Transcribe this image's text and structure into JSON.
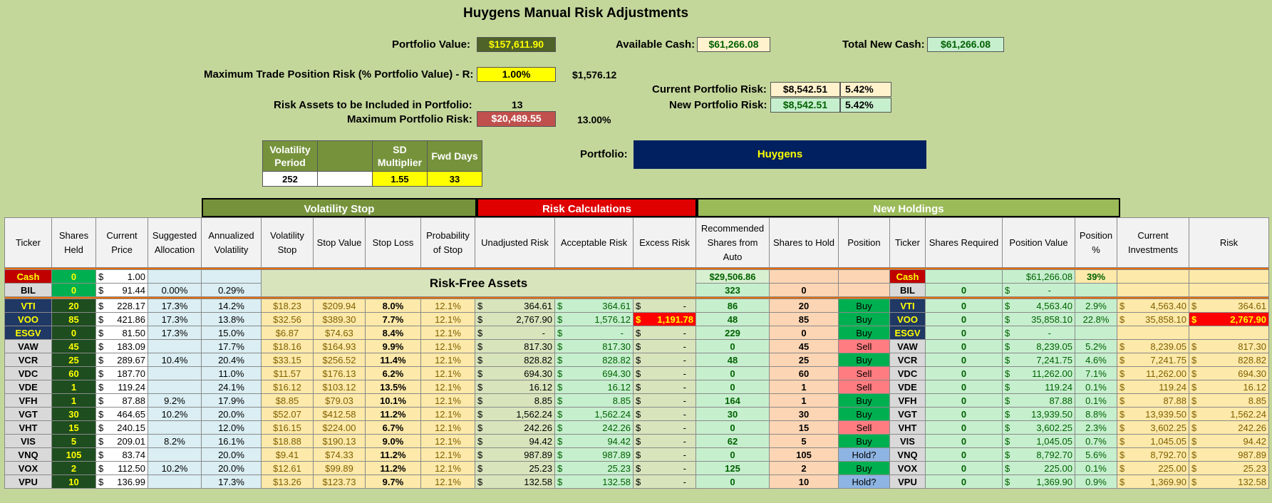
{
  "title": "Huygens Manual Risk Adjustments",
  "portfolio_value": {
    "label": "Portfolio Value:",
    "value": "$157,611.90"
  },
  "available_cash": {
    "label": "Available Cash:",
    "value": "$61,266.08"
  },
  "total_new_cash": {
    "label": "Total New Cash:",
    "value": "$61,266.08"
  },
  "max_trade_risk": {
    "label": "Maximum Trade Position Risk (% Portfolio Value) - R:",
    "value": "1.00%",
    "amount": "$1,576.12"
  },
  "current_portfolio_risk": {
    "label": "Current Portfolio Risk:",
    "value": "$8,542.51",
    "pct": "5.42%"
  },
  "new_portfolio_risk": {
    "label": "New Portfolio Risk:",
    "value": "$8,542.51",
    "pct": "5.42%"
  },
  "risk_assets": {
    "label": "Risk Assets to be Included in Portfolio:",
    "value": "13"
  },
  "max_portfolio_risk": {
    "label": "Maximum Portfolio Risk:",
    "value": "$20,489.55",
    "pct": "13.00%"
  },
  "params": {
    "h1": "Volatility Period",
    "h2": "",
    "h3": "SD Multiplier",
    "h4": "Fwd Days",
    "v1": "252",
    "v2": "",
    "v3": "1.55",
    "v4": "33"
  },
  "portfolio": {
    "label": "Portfolio:",
    "value": "Huygens"
  },
  "sections": {
    "vol_stop": "Volatility Stop",
    "risk_calc": "Risk Calculations",
    "new_holdings": "New Holdings"
  },
  "headers": [
    "Ticker",
    "Shares Held",
    "Current Price",
    "Suggested Allocation",
    "Annualized Volatility",
    "Volatility Stop",
    "Stop Value",
    "Stop Loss",
    "Probability of Stop",
    "Unadjusted Risk",
    "Acceptable Risk",
    "Excess Risk",
    "Recommended Shares from Auto",
    "Shares to Hold",
    "Position",
    "Ticker",
    "Shares Required",
    "Position Value",
    "Position %",
    "Current Investments",
    "Risk"
  ],
  "cash_row": {
    "ticker": "Cash",
    "shares": "0",
    "price": "1.00",
    "rec": "$29,506.86",
    "ticker2": "Cash",
    "posval": "$61,266.08",
    "pospct": "39%"
  },
  "bil_row": {
    "ticker": "BIL",
    "shares": "0",
    "price": "91.44",
    "alloc": "0.00%",
    "vol": "0.29%",
    "rec": "323",
    "hold": "0",
    "ticker2": "BIL",
    "req": "0",
    "posval": "-"
  },
  "risk_free_label": "Risk-Free Assets",
  "rows": [
    {
      "ticker": "VTI",
      "shares": "20",
      "price": "228.17",
      "alloc": "17.3%",
      "vol": "14.2%",
      "vstop": "$18.23",
      "sval": "$209.94",
      "sloss": "8.0%",
      "prob": "12.1%",
      "unadj": "364.61",
      "accept": "364.61",
      "excess": "-",
      "rec": "86",
      "hold": "20",
      "pos": "Buy",
      "req": "0",
      "posval": "4,563.40",
      "pospct": "2.9%",
      "curinv": "4,563.40",
      "risk": "364.61"
    },
    {
      "ticker": "VOO",
      "shares": "85",
      "price": "421.86",
      "alloc": "17.3%",
      "vol": "13.8%",
      "vstop": "$32.56",
      "sval": "$389.30",
      "sloss": "7.7%",
      "prob": "12.1%",
      "unadj": "2,767.90",
      "accept": "1,576.12",
      "excess": "1,191.78",
      "rec": "48",
      "hold": "85",
      "pos": "Buy",
      "req": "0",
      "posval": "35,858.10",
      "pospct": "22.8%",
      "curinv": "35,858.10",
      "risk": "2,767.90"
    },
    {
      "ticker": "ESGV",
      "shares": "0",
      "price": "81.50",
      "alloc": "17.3%",
      "vol": "15.0%",
      "vstop": "$6.87",
      "sval": "$74.63",
      "sloss": "8.4%",
      "prob": "12.1%",
      "unadj": "-",
      "accept": "-",
      "excess": "-",
      "rec": "229",
      "hold": "0",
      "pos": "Buy",
      "req": "0",
      "posval": "-",
      "pospct": "",
      "curinv": "",
      "risk": ""
    },
    {
      "ticker": "VAW",
      "shares": "45",
      "price": "183.09",
      "alloc": "",
      "vol": "17.7%",
      "vstop": "$18.16",
      "sval": "$164.93",
      "sloss": "9.9%",
      "prob": "12.1%",
      "unadj": "817.30",
      "accept": "817.30",
      "excess": "-",
      "rec": "0",
      "hold": "45",
      "pos": "Sell",
      "req": "0",
      "posval": "8,239.05",
      "pospct": "5.2%",
      "curinv": "8,239.05",
      "risk": "817.30"
    },
    {
      "ticker": "VCR",
      "shares": "25",
      "price": "289.67",
      "alloc": "10.4%",
      "vol": "20.4%",
      "vstop": "$33.15",
      "sval": "$256.52",
      "sloss": "11.4%",
      "prob": "12.1%",
      "unadj": "828.82",
      "accept": "828.82",
      "excess": "-",
      "rec": "48",
      "hold": "25",
      "pos": "Buy",
      "req": "0",
      "posval": "7,241.75",
      "pospct": "4.6%",
      "curinv": "7,241.75",
      "risk": "828.82"
    },
    {
      "ticker": "VDC",
      "shares": "60",
      "price": "187.70",
      "alloc": "",
      "vol": "11.0%",
      "vstop": "$11.57",
      "sval": "$176.13",
      "sloss": "6.2%",
      "prob": "12.1%",
      "unadj": "694.30",
      "accept": "694.30",
      "excess": "-",
      "rec": "0",
      "hold": "60",
      "pos": "Sell",
      "req": "0",
      "posval": "11,262.00",
      "pospct": "7.1%",
      "curinv": "11,262.00",
      "risk": "694.30"
    },
    {
      "ticker": "VDE",
      "shares": "1",
      "price": "119.24",
      "alloc": "",
      "vol": "24.1%",
      "vstop": "$16.12",
      "sval": "$103.12",
      "sloss": "13.5%",
      "prob": "12.1%",
      "unadj": "16.12",
      "accept": "16.12",
      "excess": "-",
      "rec": "0",
      "hold": "1",
      "pos": "Sell",
      "req": "0",
      "posval": "119.24",
      "pospct": "0.1%",
      "curinv": "119.24",
      "risk": "16.12"
    },
    {
      "ticker": "VFH",
      "shares": "1",
      "price": "87.88",
      "alloc": "9.2%",
      "vol": "17.9%",
      "vstop": "$8.85",
      "sval": "$79.03",
      "sloss": "10.1%",
      "prob": "12.1%",
      "unadj": "8.85",
      "accept": "8.85",
      "excess": "-",
      "rec": "164",
      "hold": "1",
      "pos": "Buy",
      "req": "0",
      "posval": "87.88",
      "pospct": "0.1%",
      "curinv": "87.88",
      "risk": "8.85"
    },
    {
      "ticker": "VGT",
      "shares": "30",
      "price": "464.65",
      "alloc": "10.2%",
      "vol": "20.0%",
      "vstop": "$52.07",
      "sval": "$412.58",
      "sloss": "11.2%",
      "prob": "12.1%",
      "unadj": "1,562.24",
      "accept": "1,562.24",
      "excess": "-",
      "rec": "30",
      "hold": "30",
      "pos": "Buy",
      "req": "0",
      "posval": "13,939.50",
      "pospct": "8.8%",
      "curinv": "13,939.50",
      "risk": "1,562.24"
    },
    {
      "ticker": "VHT",
      "shares": "15",
      "price": "240.15",
      "alloc": "",
      "vol": "12.0%",
      "vstop": "$16.15",
      "sval": "$224.00",
      "sloss": "6.7%",
      "prob": "12.1%",
      "unadj": "242.26",
      "accept": "242.26",
      "excess": "-",
      "rec": "0",
      "hold": "15",
      "pos": "Sell",
      "req": "0",
      "posval": "3,602.25",
      "pospct": "2.3%",
      "curinv": "3,602.25",
      "risk": "242.26"
    },
    {
      "ticker": "VIS",
      "shares": "5",
      "price": "209.01",
      "alloc": "8.2%",
      "vol": "16.1%",
      "vstop": "$18.88",
      "sval": "$190.13",
      "sloss": "9.0%",
      "prob": "12.1%",
      "unadj": "94.42",
      "accept": "94.42",
      "excess": "-",
      "rec": "62",
      "hold": "5",
      "pos": "Buy",
      "req": "0",
      "posval": "1,045.05",
      "pospct": "0.7%",
      "curinv": "1,045.05",
      "risk": "94.42"
    },
    {
      "ticker": "VNQ",
      "shares": "105",
      "price": "83.74",
      "alloc": "",
      "vol": "20.0%",
      "vstop": "$9.41",
      "sval": "$74.33",
      "sloss": "11.2%",
      "prob": "12.1%",
      "unadj": "987.89",
      "accept": "987.89",
      "excess": "-",
      "rec": "0",
      "hold": "105",
      "pos": "Hold?",
      "req": "0",
      "posval": "8,792.70",
      "pospct": "5.6%",
      "curinv": "8,792.70",
      "risk": "987.89"
    },
    {
      "ticker": "VOX",
      "shares": "2",
      "price": "112.50",
      "alloc": "10.2%",
      "vol": "20.0%",
      "vstop": "$12.61",
      "sval": "$99.89",
      "sloss": "11.2%",
      "prob": "12.1%",
      "unadj": "25.23",
      "accept": "25.23",
      "excess": "-",
      "rec": "125",
      "hold": "2",
      "pos": "Buy",
      "req": "0",
      "posval": "225.00",
      "pospct": "0.1%",
      "curinv": "225.00",
      "risk": "25.23"
    },
    {
      "ticker": "VPU",
      "shares": "10",
      "price": "136.99",
      "alloc": "",
      "vol": "17.3%",
      "vstop": "$13.26",
      "sval": "$123.73",
      "sloss": "9.7%",
      "prob": "12.1%",
      "unadj": "132.58",
      "accept": "132.58",
      "excess": "-",
      "rec": "0",
      "hold": "10",
      "pos": "Hold?",
      "req": "0",
      "posval": "1,369.90",
      "pospct": "0.9%",
      "curinv": "1,369.90",
      "risk": "132.58"
    }
  ],
  "colors": {
    "background": "#c4d79b",
    "buy": "#00b050",
    "sell": "#ff7c80",
    "hold": "#8db4e2",
    "risk_header": "#e00000",
    "vol_header": "#76933c",
    "portfolio_box": "#002060"
  }
}
